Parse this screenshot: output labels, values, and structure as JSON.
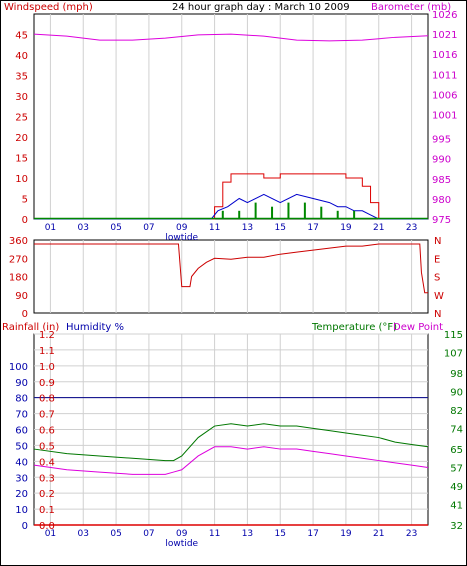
{
  "header": {
    "left_label": "Windspeed (mph)",
    "title": "24 hour graph day : March 10 2009",
    "right_label": "Barometer (mb)"
  },
  "chart_data": [
    {
      "type": "bar",
      "name_left_axis": "Windspeed (mph)",
      "name_right_axis": "Barometer (mb)",
      "title": "24 hour graph day : March 10 2009",
      "x_ticks": [
        "01",
        "03",
        "05",
        "07",
        "09",
        "11",
        "13",
        "15",
        "17",
        "19",
        "21",
        "23"
      ],
      "x_annotation": "lowtide",
      "y_left_ticks": [
        0,
        5,
        10,
        15,
        20,
        25,
        30,
        35,
        40,
        45
      ],
      "y_left_range": [
        0,
        50
      ],
      "y_right_ticks": [
        975,
        980,
        985,
        990,
        995,
        1001,
        1006,
        1011,
        1016,
        1021,
        1026
      ],
      "y_right_range": [
        975,
        1026
      ],
      "grid": "vertical",
      "colors": {
        "gust": "#dd0000",
        "avg": "#0000cc",
        "speed_bars": "#008800",
        "barometer": "#dd00dd"
      },
      "series": [
        {
          "name": "Barometer",
          "x": [
            0,
            2,
            4,
            6,
            8,
            10,
            12,
            14,
            16,
            18,
            20,
            22,
            24
          ],
          "values": [
            1021,
            1020.5,
            1019.5,
            1019.5,
            1020,
            1020.8,
            1021,
            1020.5,
            1019.5,
            1019.3,
            1019.5,
            1020.2,
            1020.6
          ]
        },
        {
          "name": "Gust",
          "x": [
            0,
            8,
            9,
            10,
            11,
            11.5,
            12,
            13,
            14,
            15,
            16,
            17,
            18,
            19,
            19.5,
            20,
            20.5,
            21,
            22,
            24
          ],
          "values": [
            0,
            0,
            0,
            0,
            3,
            9,
            11,
            11,
            10,
            11,
            11,
            11,
            11,
            10,
            10,
            8,
            4,
            0,
            0,
            0
          ]
        },
        {
          "name": "Average",
          "x": [
            0,
            10.8,
            11.2,
            11.8,
            12.5,
            13,
            14,
            15,
            16,
            17,
            18,
            18.5,
            19,
            19.5,
            20,
            20.5,
            21,
            24
          ],
          "values": [
            0,
            0,
            2,
            3,
            5,
            4,
            6,
            4,
            6,
            5,
            4,
            3,
            3,
            2,
            2,
            1,
            0,
            0
          ]
        },
        {
          "name": "Speed",
          "x": [
            0,
            10.8,
            11.5,
            12.5,
            13.5,
            14.5,
            15.5,
            16.5,
            17.5,
            18.5,
            19.5,
            20,
            24
          ],
          "values": [
            0,
            0,
            2,
            2,
            4,
            3,
            4,
            4,
            3,
            2,
            2,
            0,
            0
          ]
        }
      ]
    },
    {
      "type": "line",
      "name": "Wind direction",
      "x_ticks": [
        "01",
        "03",
        "05",
        "07",
        "09",
        "11",
        "13",
        "15",
        "17",
        "19",
        "21",
        "23"
      ],
      "y_left_ticks": [
        0,
        90,
        180,
        270,
        360
      ],
      "y_left_range": [
        0,
        360
      ],
      "y_right_ticks": [
        "N",
        "W",
        "S",
        "E",
        "N"
      ],
      "grid": "vertical",
      "colors": {
        "line": "#cc0000"
      },
      "series": [
        {
          "name": "Direction",
          "x": [
            0,
            4,
            8.5,
            8.8,
            9,
            9.3,
            9.5,
            9.6,
            10,
            10.5,
            11,
            12,
            13,
            14,
            15,
            16,
            17,
            18,
            19,
            20,
            21,
            22,
            23.5,
            23.6,
            23.8,
            24
          ],
          "values": [
            340,
            340,
            340,
            340,
            130,
            130,
            130,
            180,
            220,
            250,
            270,
            265,
            275,
            275,
            290,
            300,
            310,
            320,
            330,
            330,
            340,
            340,
            340,
            200,
            100,
            100
          ]
        }
      ]
    },
    {
      "type": "line",
      "name": "Rainfall / Humidity / Temperature",
      "x_ticks": [
        "01",
        "03",
        "05",
        "07",
        "09",
        "11",
        "13",
        "15",
        "17",
        "19",
        "21",
        "23"
      ],
      "x_annotation": "lowtide",
      "y_left_ticks_rain": [
        0.0,
        0.1,
        0.2,
        0.3,
        0.4,
        0.5,
        0.6,
        0.7,
        0.8,
        0.9,
        1.0,
        1.1,
        1.2
      ],
      "y_left_ticks_humidity": [
        0,
        10,
        20,
        30,
        40,
        50,
        60,
        70,
        80,
        90,
        100
      ],
      "y_right_ticks": [
        32,
        41,
        49,
        57,
        65,
        74,
        82,
        90,
        98,
        107,
        115
      ],
      "y_right_range": [
        32,
        115
      ],
      "grid": "both",
      "legend": [
        "Rainfall (in)",
        "Humidity %",
        "Temperature (°F)",
        "Dew Point"
      ],
      "colors": {
        "rain": "#dd0000",
        "humidity": "#000088",
        "temperature": "#007700",
        "dewpoint": "#dd00dd"
      },
      "series": [
        {
          "name": "Rainfall",
          "x": [
            0,
            24
          ],
          "values": [
            0.0,
            0.0
          ]
        },
        {
          "name": "Humidity",
          "x": [
            0,
            24
          ],
          "values": [
            80,
            80
          ]
        },
        {
          "name": "Temperature",
          "x": [
            0,
            2,
            4,
            6,
            8,
            8.5,
            9,
            10,
            11,
            12,
            13,
            14,
            15,
            16,
            17,
            18,
            19,
            20,
            21,
            22,
            23,
            24
          ],
          "values": [
            65,
            63,
            62,
            61,
            60,
            60,
            62,
            70,
            75,
            76,
            75,
            76,
            75,
            75,
            74,
            73,
            72,
            71,
            70,
            68,
            67,
            66
          ]
        },
        {
          "name": "Dew Point",
          "x": [
            0,
            2,
            4,
            6,
            8,
            8.5,
            9,
            10,
            11,
            12,
            13,
            14,
            15,
            16,
            17,
            18,
            19,
            20,
            21,
            22,
            23,
            24
          ],
          "values": [
            58,
            56,
            55,
            54,
            54,
            55,
            56,
            62,
            66,
            66,
            65,
            66,
            65,
            65,
            64,
            63,
            62,
            61,
            60,
            59,
            58,
            57
          ]
        }
      ]
    }
  ],
  "legend": {
    "rain": "Rainfall (in)",
    "humidity": "Humidity %",
    "temperature": "Temperature (°F)",
    "dewpoint": "Dew Point"
  }
}
